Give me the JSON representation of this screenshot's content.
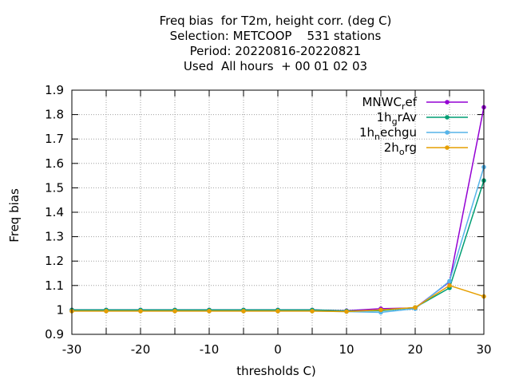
{
  "chart_data": {
    "type": "line",
    "title_lines": [
      "Freq bias  for T2m, height corr. (deg C)",
      "Selection: METCOOP    531 stations",
      "Period: 20220816-20220821",
      "Used  All hours  + 00 01 02 03"
    ],
    "xlabel": "thresholds C)",
    "ylabel": "Freq bias",
    "x": [
      -30,
      -25,
      -20,
      -15,
      -10,
      -5,
      0,
      5,
      10,
      15,
      20,
      25,
      30
    ],
    "xlim": [
      -30,
      30
    ],
    "ylim": [
      0.9,
      1.9
    ],
    "xticks": [
      -30,
      -20,
      -10,
      0,
      10,
      20,
      30
    ],
    "xgrid": [
      -30,
      -25,
      -20,
      -15,
      -10,
      -5,
      0,
      5,
      10,
      15,
      20,
      25,
      30
    ],
    "yticks": [
      0.9,
      1,
      1.1,
      1.2,
      1.3,
      1.4,
      1.5,
      1.6,
      1.7,
      1.8,
      1.9
    ],
    "grid": true,
    "legend_position": "top-right",
    "series": [
      {
        "name": "MNWC",
        "subscript": "r",
        "suffix": "ef",
        "color": "#9400d3",
        "values": [
          1.0,
          1.0,
          1.0,
          1.0,
          1.0,
          1.0,
          1.0,
          1.0,
          0.997,
          1.005,
          1.008,
          1.115,
          1.83
        ]
      },
      {
        "name": "1h",
        "subscript": "g",
        "suffix": "rAv",
        "color": "#009e73",
        "values": [
          1.0,
          1.0,
          1.0,
          1.0,
          1.0,
          1.0,
          1.0,
          1.0,
          0.996,
          0.997,
          1.01,
          1.09,
          1.53
        ]
      },
      {
        "name": "1h",
        "subscript": "n",
        "suffix": "echgu",
        "color": "#56b4e9",
        "values": [
          0.995,
          0.995,
          0.995,
          0.995,
          0.995,
          0.995,
          0.995,
          0.995,
          0.993,
          0.99,
          1.005,
          1.118,
          1.585
        ]
      },
      {
        "name": "2h",
        "subscript": "o",
        "suffix": "rg",
        "color": "#e69f00",
        "values": [
          0.995,
          0.995,
          0.995,
          0.995,
          0.995,
          0.995,
          0.995,
          0.995,
          0.993,
          1.0,
          1.01,
          1.1,
          1.055
        ]
      }
    ]
  }
}
